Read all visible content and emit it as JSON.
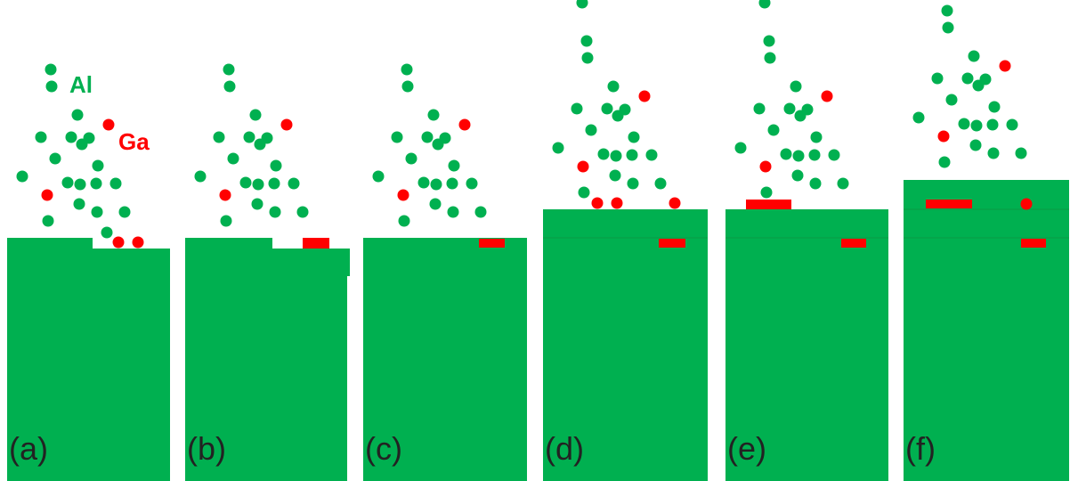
{
  "labels": {
    "al": "Al",
    "ga": "Ga"
  },
  "panels": [
    {
      "label": "(a)"
    },
    {
      "label": "(b)"
    },
    {
      "label": "(c)"
    },
    {
      "label": "(d)"
    },
    {
      "label": "(e)"
    },
    {
      "label": "(f)"
    }
  ]
}
